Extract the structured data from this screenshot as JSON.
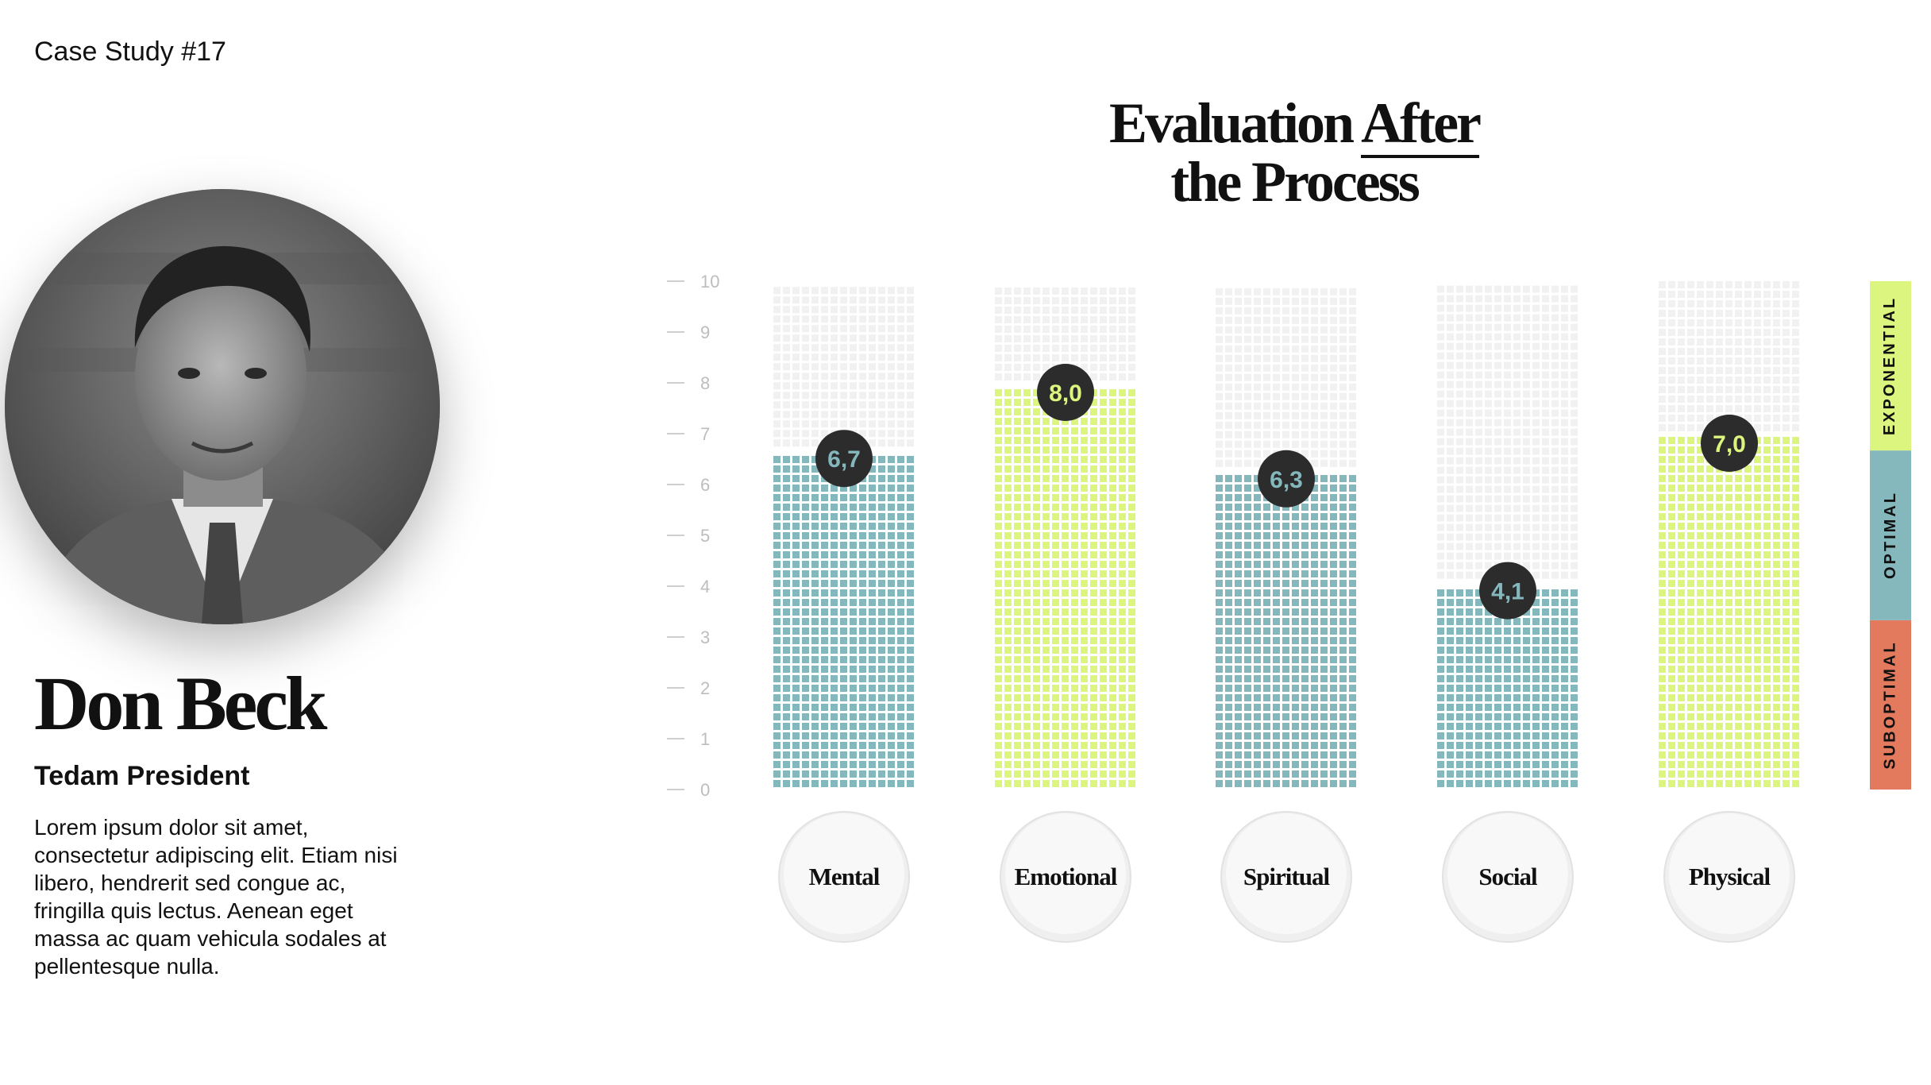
{
  "header": {
    "case_label": "Case Study #17"
  },
  "person": {
    "name": "Don Beck",
    "role": "Tedam President",
    "bio": "Lorem ipsum dolor sit amet, consectetur adipiscing elit. Etiam nisi libero, hendrerit sed congue ac, fringilla quis lectus. Aenean eget massa ac quam vehicula sodales at pellentesque nulla."
  },
  "colors": {
    "teal": "#84b8bd",
    "lime": "#dcf57e",
    "coral": "#e37a5e",
    "track": "#f1f1f1",
    "badge": "#2c2c2c"
  },
  "chart_data": {
    "type": "bar",
    "title_line1_a": "Evaluation ",
    "title_line1_b": "After",
    "title_line2": "the Process",
    "categories": [
      "Mental",
      "Emotional",
      "Spiritual",
      "Social",
      "Physical"
    ],
    "values": [
      6.7,
      8.0,
      6.3,
      4.1,
      7.0
    ],
    "value_labels": [
      "6,7",
      "8,0",
      "6,3",
      "4,1",
      "7,0"
    ],
    "bar_colors": [
      "#84b8bd",
      "#dcf57e",
      "#84b8bd",
      "#84b8bd",
      "#dcf57e"
    ],
    "ylim": [
      0,
      10
    ],
    "yticks": [
      "0",
      "1",
      "2",
      "3",
      "4",
      "5",
      "6",
      "7",
      "8",
      "9",
      "10"
    ],
    "bands": [
      {
        "label": "SUBOPTIMAL",
        "from": 0,
        "to": 3.33,
        "color": "#e37a5e"
      },
      {
        "label": "OPTIMAL",
        "from": 3.33,
        "to": 6.67,
        "color": "#84b8bd"
      },
      {
        "label": "EXPONENTIAL",
        "from": 6.67,
        "to": 10,
        "color": "#dcf57e"
      }
    ],
    "grid": false,
    "legend": "right"
  }
}
